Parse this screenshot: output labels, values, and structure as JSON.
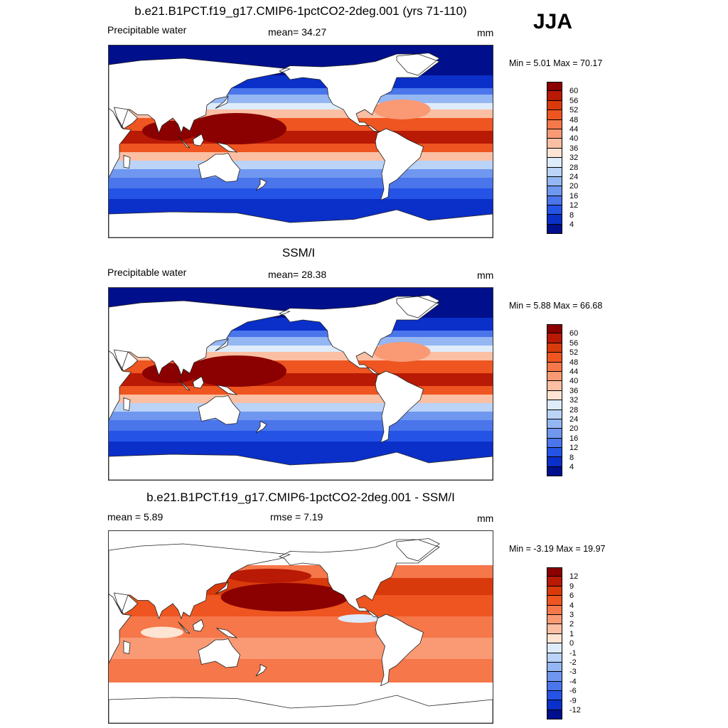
{
  "season": "JJA",
  "panels": [
    {
      "id": "model",
      "title": "b.e21.B1PCT.f19_g17.CMIP6-1pctCO2-2deg.001 (yrs 71-110)",
      "left_label": "Precipitable water",
      "center_label": "mean=  34.27",
      "units": "mm",
      "minmax": "Min =   5.01 Max =  70.17"
    },
    {
      "id": "obs",
      "title": "SSM/I",
      "left_label": "Precipitable water",
      "center_label": "mean=  28.38",
      "units": "mm",
      "minmax": "Min =   5.88 Max =  66.68"
    },
    {
      "id": "diff",
      "title": "b.e21.B1PCT.f19_g17.CMIP6-1pctCO2-2deg.001 - SSM/I",
      "left_label": "mean =   5.89",
      "center_label": "rmse =   7.19",
      "units": "mm",
      "minmax": "Min =  -3.19 Max =  19.97"
    }
  ],
  "colorbars": {
    "field": {
      "labels": [
        "60",
        "56",
        "52",
        "48",
        "44",
        "40",
        "36",
        "32",
        "28",
        "24",
        "20",
        "16",
        "12",
        "8",
        "4"
      ],
      "colors": [
        "#8b0000",
        "#b81a05",
        "#d83a0c",
        "#ee5520",
        "#f5774a",
        "#f99a74",
        "#fbbfa3",
        "#fde4d3",
        "#deebfa",
        "#bad3f7",
        "#94b6f3",
        "#6f97ef",
        "#4a75eb",
        "#2553e6",
        "#0b2fc9",
        "#000f8c"
      ]
    },
    "diff": {
      "labels": [
        "12",
        "9",
        "6",
        "4",
        "3",
        "2",
        "1",
        "0",
        "-1",
        "-2",
        "-3",
        "-4",
        "-6",
        "-9",
        "-12"
      ],
      "colors": [
        "#8b0000",
        "#b81a05",
        "#d83a0c",
        "#ee5520",
        "#f5774a",
        "#f99a74",
        "#fbbfa3",
        "#fde4d3",
        "#deebfa",
        "#bad3f7",
        "#94b6f3",
        "#6f97ef",
        "#4a75eb",
        "#2553e6",
        "#0b2fc9",
        "#000f8c"
      ]
    }
  }
}
